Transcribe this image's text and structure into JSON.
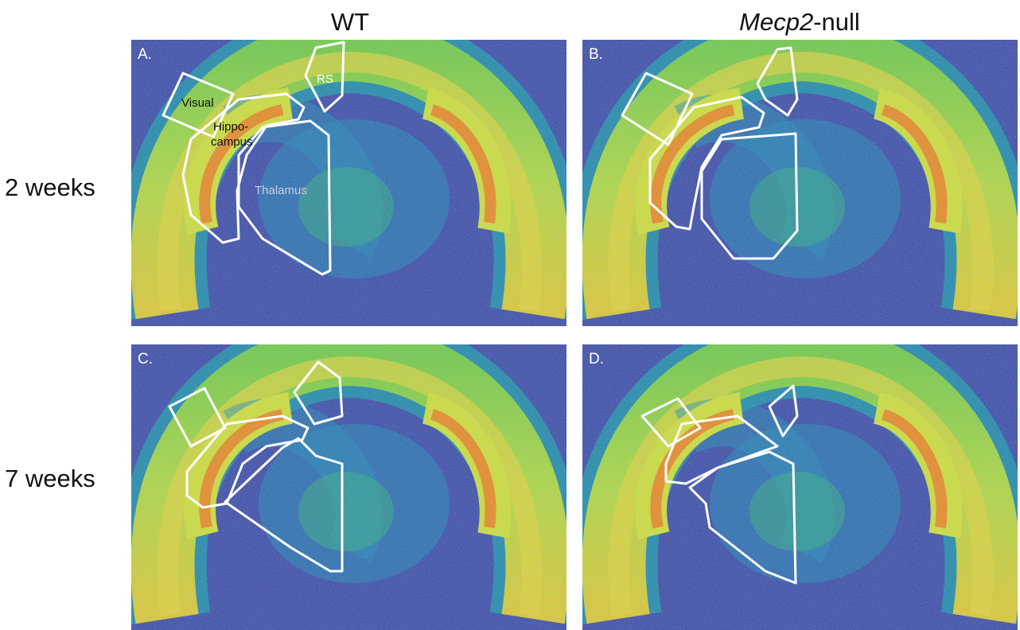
{
  "figure": {
    "columns": [
      {
        "text": "WT"
      },
      {
        "italic": "Mecp2",
        "text": "-null"
      }
    ],
    "rows": [
      "2 weeks",
      "7 weeks"
    ],
    "panels": [
      "A.",
      "B.",
      "C.",
      "D."
    ],
    "regions": {
      "visual": "Visual",
      "hippocampus": [
        "Hippo-",
        "campus"
      ],
      "thalamus": "Thalamus",
      "rs": "RS"
    }
  }
}
